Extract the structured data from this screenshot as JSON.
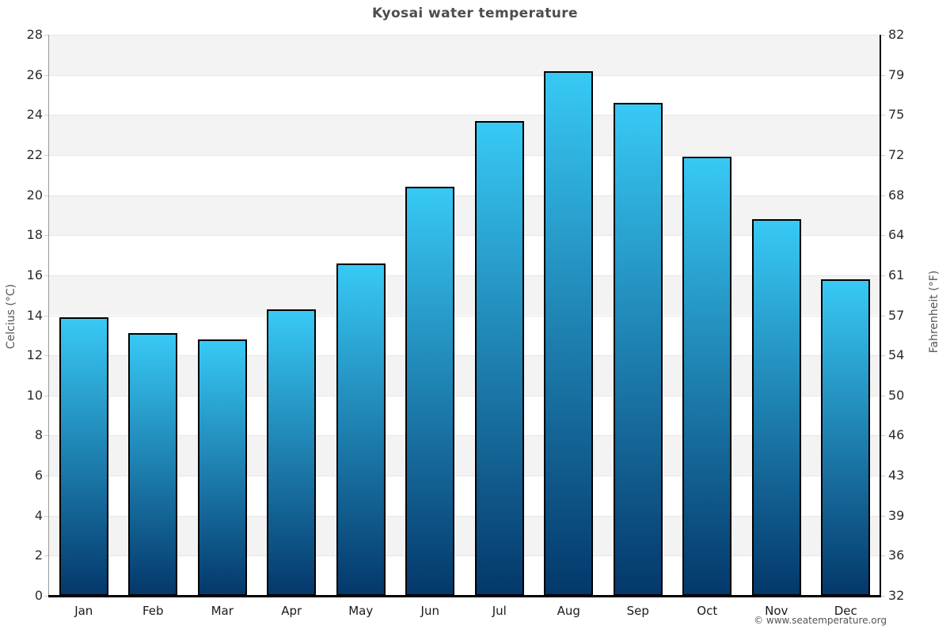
{
  "page": {
    "title": "Kyosai water temperature",
    "copyright": "© www.seatemperature.org"
  },
  "chart_data": {
    "type": "bar",
    "title": "Kyosai water temperature",
    "categories": [
      "Jan",
      "Feb",
      "Mar",
      "Apr",
      "May",
      "Jun",
      "Jul",
      "Aug",
      "Sep",
      "Oct",
      "Nov",
      "Dec"
    ],
    "series": [
      {
        "name": "Water temperature (°C)",
        "values": [
          13.9,
          13.1,
          12.8,
          14.3,
          16.6,
          20.4,
          23.7,
          26.2,
          24.6,
          21.9,
          18.8,
          15.8
        ]
      }
    ],
    "ylabel_left": "Celcius (°C)",
    "ylabel_right": "Fahrenheit (°F)",
    "xlabel": "",
    "ylim": [
      0,
      28
    ],
    "celsius_ticks": [
      0,
      2,
      4,
      6,
      8,
      10,
      12,
      14,
      16,
      18,
      20,
      22,
      24,
      26,
      28
    ],
    "fahrenheit_ticks": [
      32,
      36,
      39,
      43,
      46,
      50,
      54,
      57,
      61,
      64,
      68,
      72,
      75,
      79,
      82
    ],
    "grid": {
      "horizontal_bands": true,
      "band_step_celsius": 2,
      "top_band_shaded": true,
      "band_shade_color": "#f3f3f3",
      "band_alt_color": "#ffffff",
      "gridline_color": "#e6e6e6"
    },
    "legend": "none",
    "colors": {
      "bar_gradient_top": "#38c9f5",
      "bar_gradient_bottom": "#04386b",
      "bar_border": "#000000",
      "left_axis_line": "#999999",
      "right_axis_line": "#000000",
      "bottom_axis_line": "#000000",
      "tick_label": "#2b2b2b",
      "axis_title": "#555555",
      "title": "#4d4d4d",
      "copyright": "#555555"
    }
  }
}
